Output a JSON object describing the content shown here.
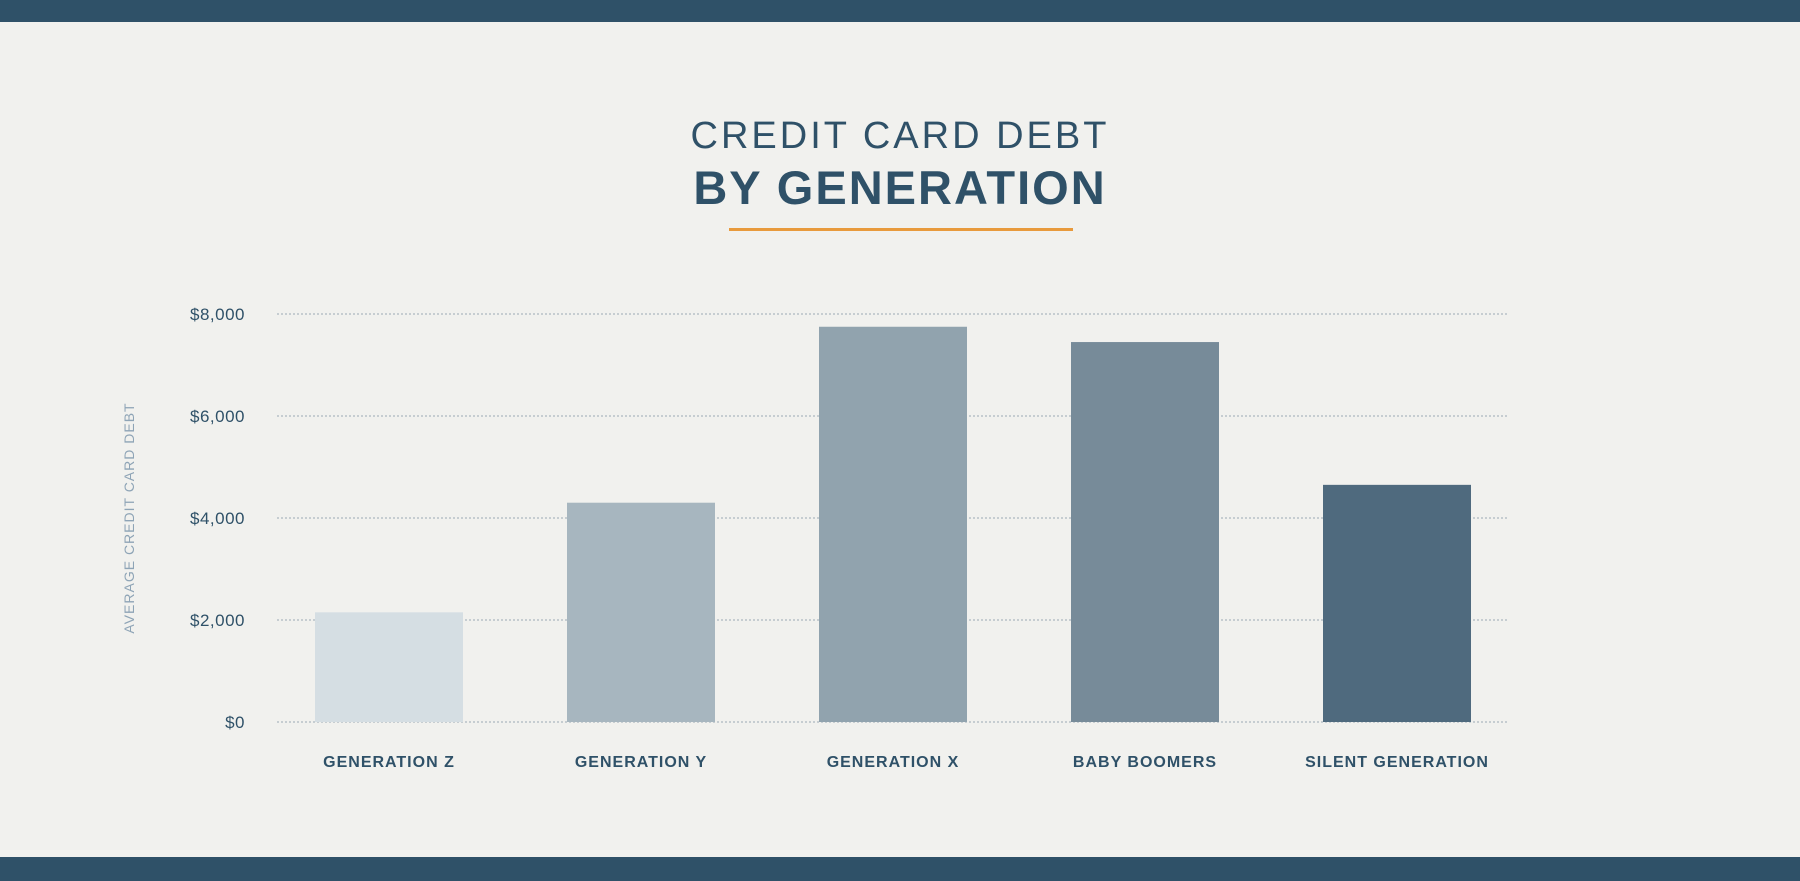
{
  "header": {
    "title_line1": "CREDIT CARD DEBT",
    "title_line2": "BY GENERATION"
  },
  "colors": {
    "band": "#2f5168",
    "accent": "#e89a3c",
    "grid": "#9aa9b4",
    "tick_text": "#2f5168",
    "ylabel_text": "#8ea4b6",
    "bars": [
      "#d5dee3",
      "#a7b6bf",
      "#91a3ae",
      "#778b99",
      "#4f6a7e"
    ]
  },
  "chart_data": {
    "type": "bar",
    "categories": [
      "GENERATION Z",
      "GENERATION Y",
      "GENERATION X",
      "BABY BOOMERS",
      "SILENT GENERATION"
    ],
    "values": [
      2150,
      4300,
      7750,
      7450,
      4650
    ],
    "title": "CREDIT CARD DEBT BY GENERATION",
    "xlabel": "",
    "ylabel": "AVERAGE CREDIT CARD DEBT",
    "ylim": [
      0,
      8000
    ],
    "yticks": [
      0,
      2000,
      4000,
      6000,
      8000
    ],
    "ytick_labels": [
      "$0",
      "$2,000",
      "$4,000",
      "$6,000",
      "$8,000"
    ],
    "grid": true,
    "legend": "none"
  }
}
